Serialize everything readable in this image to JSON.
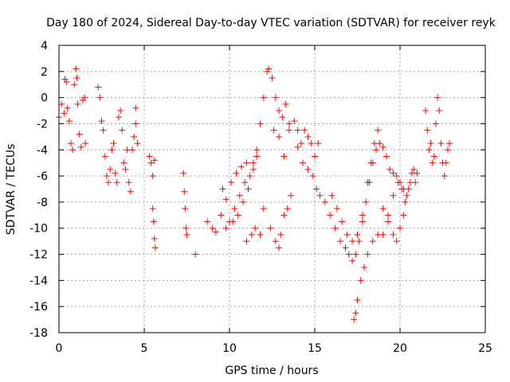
{
  "chart_data": {
    "type": "scatter",
    "title": "Day 180 of 2024, Sidereal Day-to-day VTEC variation (SDTVAR) for receiver reyk",
    "xlabel": "GPS time / hours",
    "ylabel": "SDTVAR / TECUs",
    "xlim": [
      0,
      25
    ],
    "ylim": [
      -18,
      4
    ],
    "xticks": [
      0,
      5,
      10,
      15,
      20,
      25
    ],
    "yticks": [
      -18,
      -16,
      -14,
      -12,
      -10,
      -8,
      -6,
      -4,
      -2,
      0,
      2,
      4
    ],
    "grid": true,
    "marker": "+",
    "color": "#ff0000",
    "series": [
      {
        "name": "SDTVAR",
        "points": [
          [
            0.0,
            -1.5
          ],
          [
            0.15,
            -0.5
          ],
          [
            0.3,
            -1.2
          ],
          [
            0.35,
            1.4
          ],
          [
            0.45,
            1.2
          ],
          [
            0.5,
            -0.8
          ],
          [
            0.6,
            -1.8
          ],
          [
            0.7,
            -3.5
          ],
          [
            0.8,
            -4.0
          ],
          [
            0.9,
            1.0
          ],
          [
            1.0,
            2.2
          ],
          [
            1.05,
            1.5
          ],
          [
            1.1,
            -0.5
          ],
          [
            1.2,
            -2.8
          ],
          [
            1.3,
            -3.8
          ],
          [
            1.4,
            -0.2
          ],
          [
            1.5,
            0.0
          ],
          [
            1.55,
            -3.5
          ],
          [
            2.3,
            0.8
          ],
          [
            2.4,
            0.0
          ],
          [
            2.5,
            -1.8
          ],
          [
            2.6,
            -2.5
          ],
          [
            2.7,
            -4.5
          ],
          [
            2.8,
            -6.0
          ],
          [
            2.9,
            -6.5
          ],
          [
            3.0,
            -5.5
          ],
          [
            3.1,
            -4.0
          ],
          [
            3.2,
            -3.5
          ],
          [
            3.3,
            -5.8
          ],
          [
            3.4,
            -6.5
          ],
          [
            3.5,
            -1.5
          ],
          [
            3.6,
            -1.0
          ],
          [
            3.7,
            -2.5
          ],
          [
            3.8,
            -5.0
          ],
          [
            3.9,
            -5.5
          ],
          [
            4.0,
            -4.0
          ],
          [
            4.1,
            -6.5
          ],
          [
            4.2,
            -7.2
          ],
          [
            4.3,
            -4.0
          ],
          [
            4.4,
            -3.0
          ],
          [
            4.5,
            -2.0
          ],
          [
            4.6,
            -3.5
          ],
          [
            4.5,
            -0.8
          ],
          [
            5.3,
            -4.5
          ],
          [
            5.4,
            -5.0
          ],
          [
            5.5,
            -6.0
          ],
          [
            5.6,
            -4.8
          ],
          [
            5.5,
            -8.5
          ],
          [
            5.55,
            -9.5
          ],
          [
            5.6,
            -10.8
          ],
          [
            5.65,
            -11.5
          ],
          [
            7.3,
            -5.8
          ],
          [
            7.35,
            -7.2
          ],
          [
            7.4,
            -8.5
          ],
          [
            7.45,
            -10.0
          ],
          [
            7.5,
            -10.5
          ],
          [
            8.0,
            -12.0
          ],
          [
            8.7,
            -9.5
          ],
          [
            9.0,
            -10.0
          ],
          [
            9.2,
            -10.3
          ],
          [
            9.5,
            -9.0
          ],
          [
            9.8,
            -10.0
          ],
          [
            10.0,
            -9.5
          ],
          [
            10.3,
            -8.5
          ],
          [
            10.6,
            -7.5
          ],
          [
            10.9,
            -6.5
          ],
          [
            11.2,
            -6.0
          ],
          [
            11.4,
            -5.0
          ],
          [
            11.6,
            -4.0
          ],
          [
            11.8,
            -2.0
          ],
          [
            12.0,
            0.0
          ],
          [
            12.2,
            2.0
          ],
          [
            12.3,
            2.2
          ],
          [
            12.5,
            1.5
          ],
          [
            12.7,
            0.0
          ],
          [
            12.9,
            -1.0
          ],
          [
            13.1,
            -1.5
          ],
          [
            13.3,
            -0.5
          ],
          [
            13.5,
            -2.0
          ],
          [
            9.6,
            -7.0
          ],
          [
            9.8,
            -7.8
          ],
          [
            10.1,
            -6.5
          ],
          [
            10.4,
            -5.8
          ],
          [
            10.7,
            -5.3
          ],
          [
            11.0,
            -5.0
          ],
          [
            10.2,
            -9.5
          ],
          [
            10.5,
            -9.0
          ],
          [
            10.8,
            -8.0
          ],
          [
            11.1,
            -7.0
          ],
          [
            11.4,
            -5.5
          ],
          [
            11.6,
            -4.5
          ],
          [
            11.0,
            -11.0
          ],
          [
            11.3,
            -10.5
          ],
          [
            11.5,
            -10.0
          ],
          [
            11.8,
            -10.5
          ],
          [
            12.0,
            -8.5
          ],
          [
            12.4,
            -10.0
          ],
          [
            12.7,
            -11.0
          ],
          [
            12.9,
            -11.5
          ],
          [
            13.0,
            -10.5
          ],
          [
            13.2,
            -9.0
          ],
          [
            13.4,
            -8.5
          ],
          [
            13.6,
            -7.5
          ],
          [
            12.6,
            -2.5
          ],
          [
            12.9,
            -3.0
          ],
          [
            13.2,
            -4.5
          ],
          [
            13.5,
            -2.5
          ],
          [
            13.8,
            -1.8
          ],
          [
            14.0,
            -2.5
          ],
          [
            14.2,
            -3.5
          ],
          [
            14.4,
            -2.5
          ],
          [
            14.6,
            -3.0
          ],
          [
            14.8,
            -3.5
          ],
          [
            15.0,
            -4.5
          ],
          [
            15.2,
            -3.5
          ],
          [
            14.0,
            -3.8
          ],
          [
            14.3,
            -5.0
          ],
          [
            14.6,
            -5.5
          ],
          [
            14.9,
            -6.0
          ],
          [
            15.1,
            -7.0
          ],
          [
            15.3,
            -7.5
          ],
          [
            15.6,
            -8.0
          ],
          [
            15.9,
            -9.0
          ],
          [
            16.2,
            -10.0
          ],
          [
            16.5,
            -11.0
          ],
          [
            16.8,
            -11.5
          ],
          [
            17.0,
            -12.0
          ],
          [
            17.2,
            -12.5
          ],
          [
            17.4,
            -12.0
          ],
          [
            17.6,
            -11.0
          ],
          [
            17.8,
            -9.5
          ],
          [
            18.0,
            -8.0
          ],
          [
            18.2,
            -6.5
          ],
          [
            18.4,
            -5.0
          ],
          [
            18.6,
            -4.0
          ],
          [
            18.8,
            -3.5
          ],
          [
            19.0,
            -3.8
          ],
          [
            19.2,
            -4.5
          ],
          [
            19.4,
            -5.5
          ],
          [
            19.6,
            -5.8
          ],
          [
            19.8,
            -6.0
          ],
          [
            20.0,
            -6.5
          ],
          [
            20.2,
            -7.0
          ],
          [
            20.4,
            -7.5
          ],
          [
            20.6,
            -6.5
          ],
          [
            20.8,
            -5.5
          ],
          [
            21.0,
            -5.8
          ],
          [
            16.0,
            -7.5
          ],
          [
            16.3,
            -8.5
          ],
          [
            16.6,
            -9.5
          ],
          [
            16.9,
            -10.5
          ],
          [
            17.2,
            -11.0
          ],
          [
            17.5,
            -10.5
          ],
          [
            17.8,
            -9.0
          ],
          [
            18.1,
            -6.5
          ],
          [
            18.3,
            -5.0
          ],
          [
            18.5,
            -3.5
          ],
          [
            18.7,
            -2.5
          ],
          [
            17.3,
            -17.0
          ],
          [
            17.4,
            -16.5
          ],
          [
            17.5,
            -15.5
          ],
          [
            17.7,
            -14.0
          ],
          [
            17.9,
            -13.0
          ],
          [
            18.1,
            -12.0
          ],
          [
            18.4,
            -11.0
          ],
          [
            18.7,
            -10.5
          ],
          [
            19.0,
            -10.5
          ],
          [
            19.3,
            -9.0
          ],
          [
            19.6,
            -7.5
          ],
          [
            19.9,
            -6.5
          ],
          [
            20.1,
            -7.0
          ],
          [
            20.3,
            -8.0
          ],
          [
            20.5,
            -7.0
          ],
          [
            20.7,
            -5.8
          ],
          [
            20.9,
            -6.5
          ],
          [
            19.0,
            -8.5
          ],
          [
            19.3,
            -9.5
          ],
          [
            19.6,
            -10.5
          ],
          [
            19.8,
            -11.0
          ],
          [
            20.0,
            -10.0
          ],
          [
            20.2,
            -9.0
          ],
          [
            21.5,
            -1.0
          ],
          [
            21.6,
            -2.5
          ],
          [
            21.7,
            -4.0
          ],
          [
            21.8,
            -3.5
          ],
          [
            21.9,
            -5.0
          ],
          [
            22.0,
            -4.5
          ],
          [
            22.1,
            -2.0
          ],
          [
            22.2,
            0.0
          ],
          [
            22.3,
            -1.0
          ],
          [
            22.4,
            -3.5
          ],
          [
            22.5,
            -5.0
          ],
          [
            22.6,
            -6.0
          ],
          [
            22.7,
            -5.0
          ],
          [
            22.8,
            -4.0
          ],
          [
            22.9,
            -3.5
          ]
        ]
      }
    ]
  }
}
